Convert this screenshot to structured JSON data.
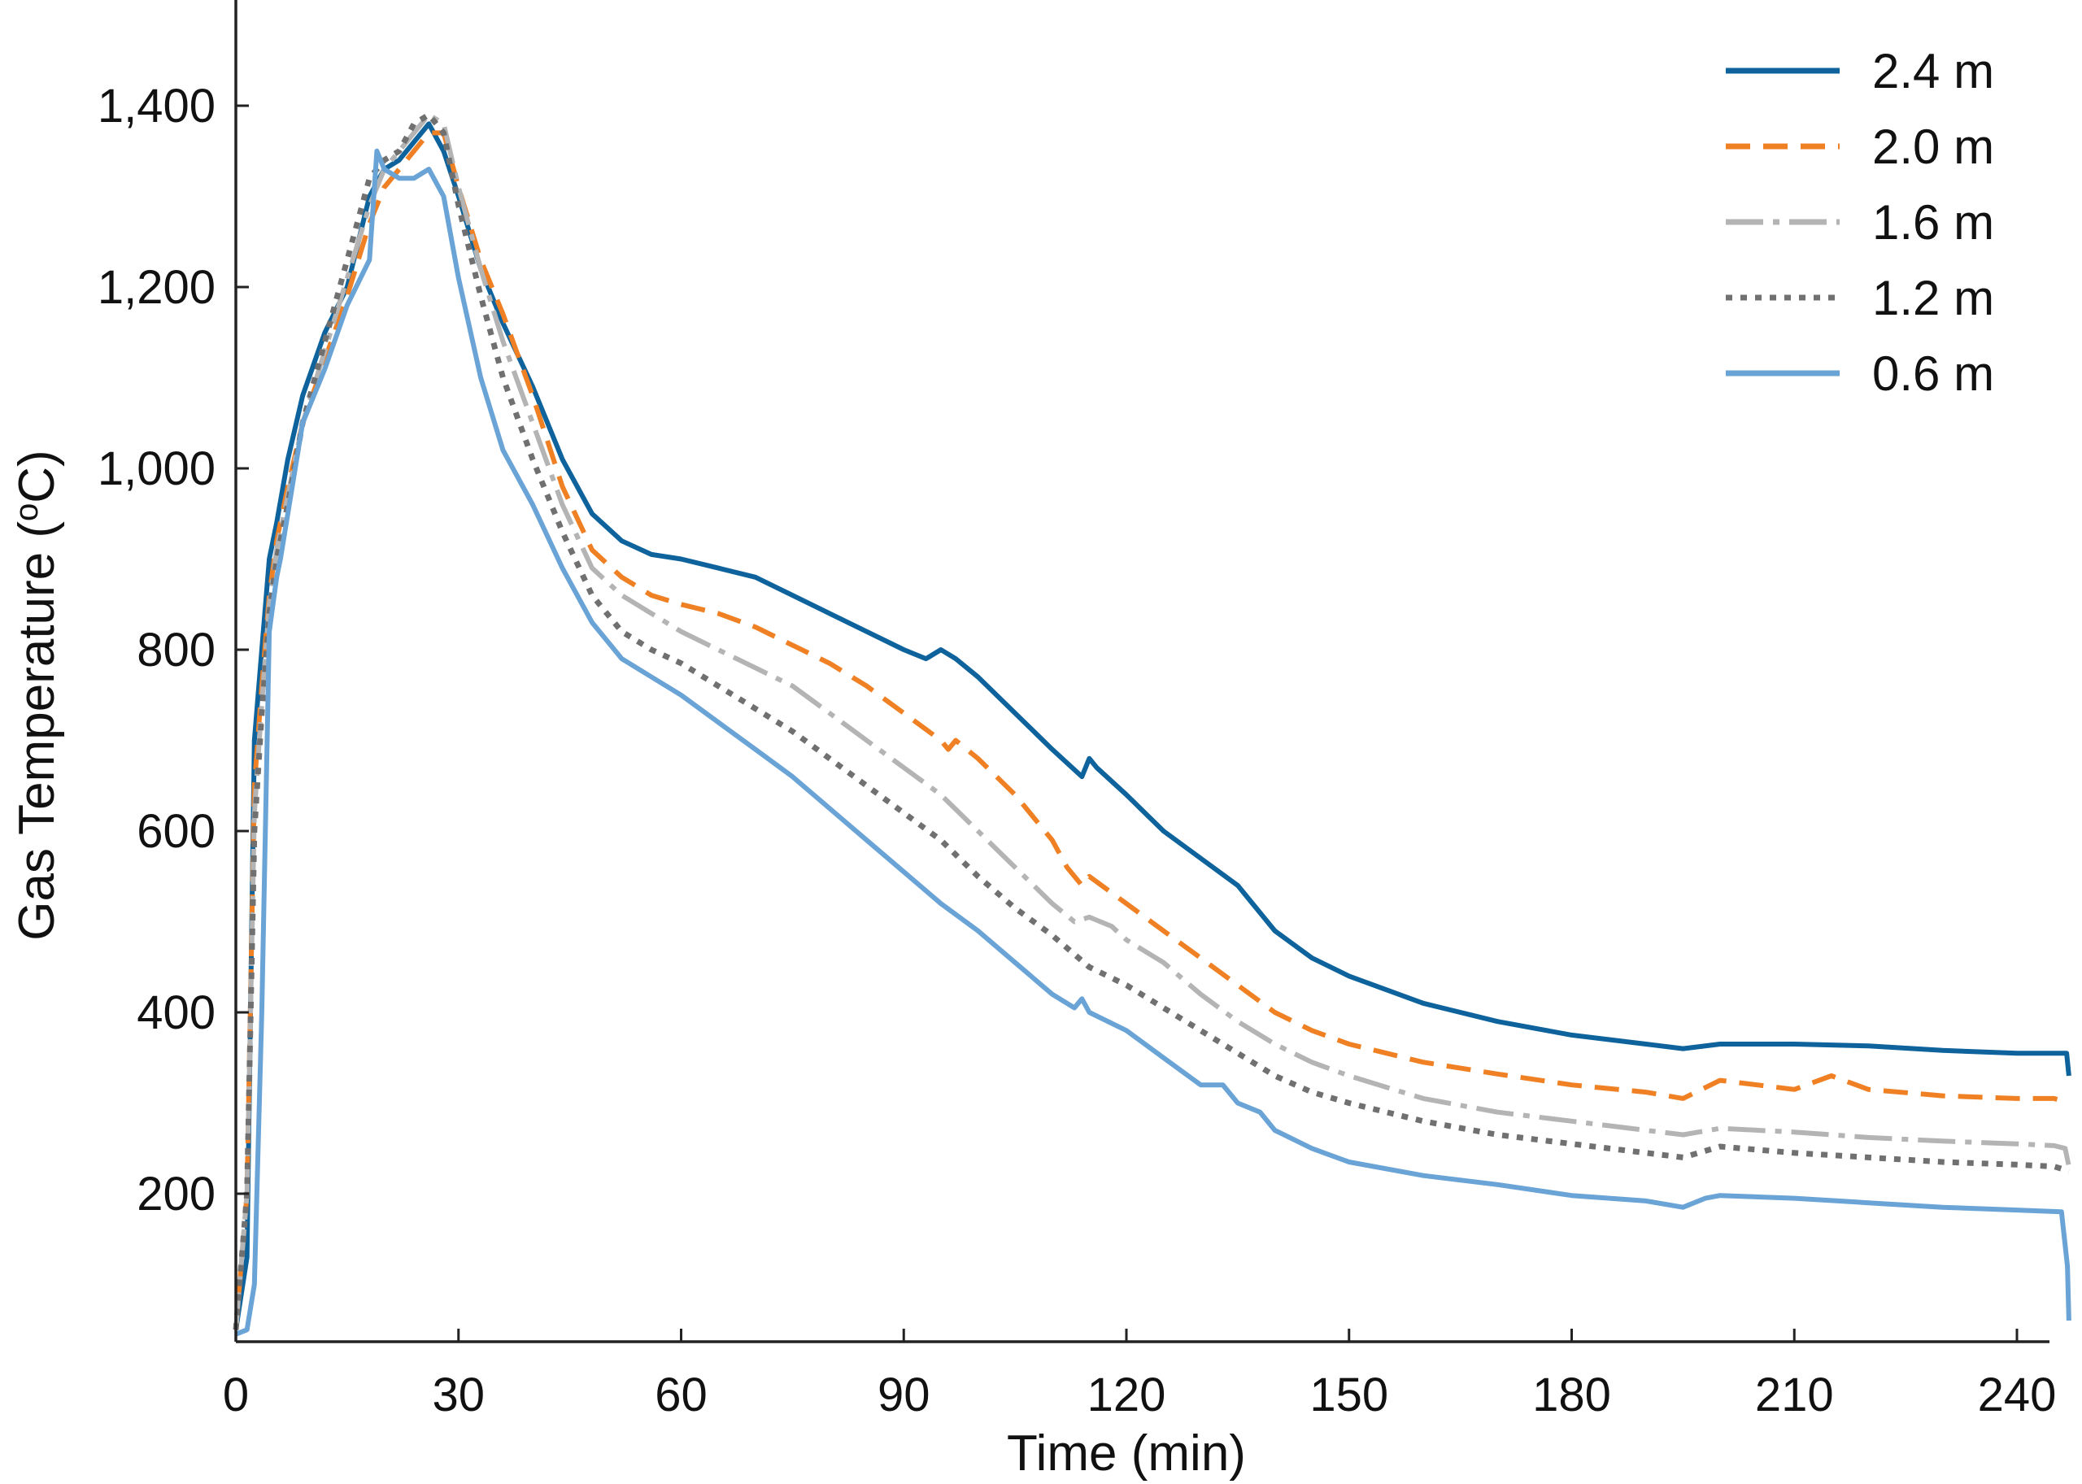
{
  "chart_data": {
    "type": "line",
    "xlabel": "Time (min)",
    "ylabel": "Gas Temperature (oC)",
    "ylabel_main": "Gas Temperature (",
    "ylabel_sup": "o",
    "ylabel_tail": "C)",
    "xlim": [
      0,
      250
    ],
    "ylim": [
      20,
      1530
    ],
    "x_ticks": [
      0,
      30,
      60,
      90,
      120,
      150,
      180,
      210,
      240
    ],
    "x_tick_labels": [
      "0",
      "30",
      "60",
      "90",
      "120",
      "150",
      "180",
      "210",
      "240"
    ],
    "y_ticks": [
      200,
      400,
      600,
      800,
      1000,
      1200,
      1400
    ],
    "y_tick_labels": [
      "200",
      "400",
      "600",
      "800",
      "1,000",
      "1,200",
      "1,400"
    ],
    "grid": false,
    "legend_position": "top-right",
    "series": [
      {
        "name": "2.4 m",
        "color": "#0e639c",
        "dash": "solid",
        "x": [
          0,
          1.5,
          2.5,
          3.5,
          4.5,
          5.5,
          7,
          9,
          12,
          15,
          18,
          20,
          22,
          24,
          26,
          28,
          30,
          33,
          36,
          40,
          44,
          48,
          52,
          56,
          60,
          65,
          70,
          75,
          80,
          85,
          90,
          93,
          95,
          97,
          100,
          105,
          110,
          114,
          115,
          116,
          120,
          125,
          130,
          135,
          140,
          145,
          150,
          160,
          170,
          180,
          190,
          195,
          200,
          210,
          220,
          230,
          240,
          245,
          246.7,
          247
        ],
        "y": [
          50,
          130,
          700,
          800,
          900,
          940,
          1010,
          1080,
          1150,
          1200,
          1300,
          1330,
          1340,
          1360,
          1380,
          1350,
          1300,
          1220,
          1160,
          1090,
          1010,
          950,
          920,
          905,
          900,
          890,
          880,
          860,
          840,
          820,
          800,
          790,
          800,
          790,
          770,
          730,
          690,
          660,
          680,
          670,
          640,
          600,
          570,
          540,
          490,
          460,
          440,
          410,
          390,
          375,
          365,
          360,
          365,
          365,
          363,
          358,
          355,
          355,
          355,
          330
        ]
      },
      {
        "name": "2.0 m",
        "color": "#f08024",
        "dash": "30,16",
        "x": [
          0,
          1.5,
          2.5,
          3.5,
          4.5,
          5.5,
          7,
          9,
          12,
          15,
          18,
          20,
          22,
          24,
          26,
          28,
          30,
          33,
          36,
          40,
          44,
          48,
          52,
          56,
          60,
          65,
          70,
          75,
          80,
          85,
          90,
          95,
          96,
          97,
          100,
          105,
          110,
          112,
          114,
          115,
          120,
          125,
          130,
          135,
          140,
          145,
          150,
          160,
          170,
          180,
          190,
          195,
          200,
          210,
          215,
          220,
          230,
          240,
          245,
          247
        ],
        "y": [
          50,
          200,
          650,
          760,
          860,
          920,
          980,
          1050,
          1120,
          1190,
          1270,
          1310,
          1330,
          1350,
          1370,
          1370,
          1310,
          1230,
          1170,
          1080,
          980,
          910,
          880,
          860,
          850,
          840,
          825,
          805,
          785,
          760,
          730,
          700,
          690,
          700,
          680,
          640,
          590,
          560,
          540,
          550,
          520,
          490,
          460,
          430,
          400,
          380,
          365,
          345,
          332,
          320,
          312,
          305,
          325,
          315,
          330,
          315,
          308,
          305,
          305,
          300
        ]
      },
      {
        "name": "1.6 m",
        "color": "#b4b4b4",
        "dash": "46,12,8,12",
        "x": [
          0,
          1.5,
          2.5,
          3.5,
          4.5,
          5.5,
          7,
          9,
          12,
          15,
          18,
          20,
          22,
          24,
          26,
          28,
          30,
          33,
          36,
          40,
          44,
          48,
          52,
          56,
          60,
          65,
          70,
          75,
          80,
          85,
          90,
          95,
          100,
          105,
          110,
          113,
          115,
          118,
          120,
          125,
          130,
          135,
          140,
          145,
          150,
          160,
          170,
          180,
          190,
          195,
          200,
          210,
          220,
          230,
          240,
          245,
          246.5,
          247
        ],
        "y": [
          50,
          200,
          620,
          740,
          850,
          910,
          970,
          1050,
          1130,
          1210,
          1290,
          1330,
          1350,
          1370,
          1390,
          1380,
          1310,
          1220,
          1140,
          1050,
          960,
          890,
          860,
          840,
          820,
          800,
          780,
          760,
          730,
          700,
          670,
          640,
          600,
          560,
          520,
          500,
          505,
          495,
          480,
          455,
          420,
          390,
          365,
          345,
          330,
          305,
          290,
          280,
          270,
          265,
          272,
          268,
          262,
          258,
          255,
          253,
          250,
          230
        ]
      },
      {
        "name": "1.2 m",
        "color": "#707070",
        "dash": "8,10",
        "x": [
          0,
          1.5,
          2.5,
          3.5,
          4.5,
          5.5,
          7,
          9,
          12,
          15,
          18,
          20,
          22,
          24,
          26,
          28,
          30,
          33,
          36,
          40,
          44,
          48,
          52,
          56,
          60,
          65,
          70,
          75,
          80,
          85,
          90,
          95,
          100,
          105,
          110,
          115,
          120,
          125,
          130,
          135,
          140,
          145,
          150,
          160,
          170,
          180,
          190,
          195,
          200,
          210,
          220,
          230,
          240,
          245,
          247
        ],
        "y": [
          50,
          200,
          600,
          730,
          840,
          900,
          960,
          1050,
          1140,
          1230,
          1320,
          1340,
          1350,
          1380,
          1390,
          1370,
          1290,
          1190,
          1100,
          1010,
          930,
          860,
          820,
          800,
          785,
          760,
          735,
          710,
          680,
          650,
          620,
          590,
          550,
          515,
          485,
          450,
          430,
          405,
          380,
          355,
          330,
          312,
          300,
          280,
          265,
          255,
          245,
          240,
          252,
          245,
          240,
          235,
          232,
          230,
          225
        ]
      },
      {
        "name": "0.6 m",
        "color": "#6aa3d6",
        "dash": "solid",
        "x": [
          0,
          1.5,
          2.5,
          3.5,
          4.5,
          5.5,
          6,
          7,
          9,
          12,
          15,
          18,
          19,
          20,
          22,
          24,
          26,
          28,
          30,
          33,
          36,
          40,
          44,
          48,
          52,
          56,
          60,
          65,
          70,
          75,
          80,
          85,
          90,
          95,
          100,
          105,
          110,
          113,
          114,
          115,
          120,
          125,
          130,
          133,
          135,
          138,
          140,
          145,
          150,
          160,
          170,
          180,
          190,
          195,
          198,
          200,
          210,
          220,
          230,
          240,
          246,
          246.8,
          247
        ],
        "y": [
          45,
          50,
          100,
          400,
          820,
          880,
          900,
          950,
          1050,
          1110,
          1180,
          1230,
          1350,
          1330,
          1320,
          1320,
          1330,
          1300,
          1210,
          1100,
          1020,
          960,
          890,
          830,
          790,
          770,
          750,
          720,
          690,
          660,
          625,
          590,
          555,
          520,
          490,
          455,
          420,
          405,
          415,
          400,
          380,
          350,
          320,
          320,
          300,
          290,
          270,
          250,
          235,
          220,
          210,
          198,
          192,
          185,
          195,
          198,
          195,
          190,
          185,
          182,
          180,
          120,
          60
        ]
      }
    ]
  }
}
